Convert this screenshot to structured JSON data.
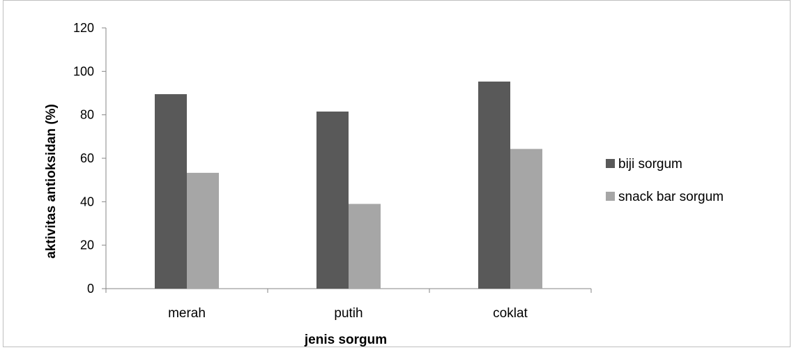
{
  "chart_data": {
    "type": "bar",
    "categories": [
      "merah",
      "putih",
      "coklat"
    ],
    "series": [
      {
        "name": "biji sorgum",
        "values": [
          89.5,
          81.5,
          95.3
        ],
        "color": "#595959"
      },
      {
        "name": "snack bar sorgum",
        "values": [
          53.3,
          39.0,
          64.3
        ],
        "color": "#a6a6a6"
      }
    ],
    "xlabel": "jenis sorgum",
    "ylabel": "aktivitas antioksidan (%)",
    "ylim": [
      0,
      120
    ],
    "yticks": [
      0,
      20,
      40,
      60,
      80,
      100,
      120
    ],
    "grid": false,
    "legend_position": "right"
  }
}
